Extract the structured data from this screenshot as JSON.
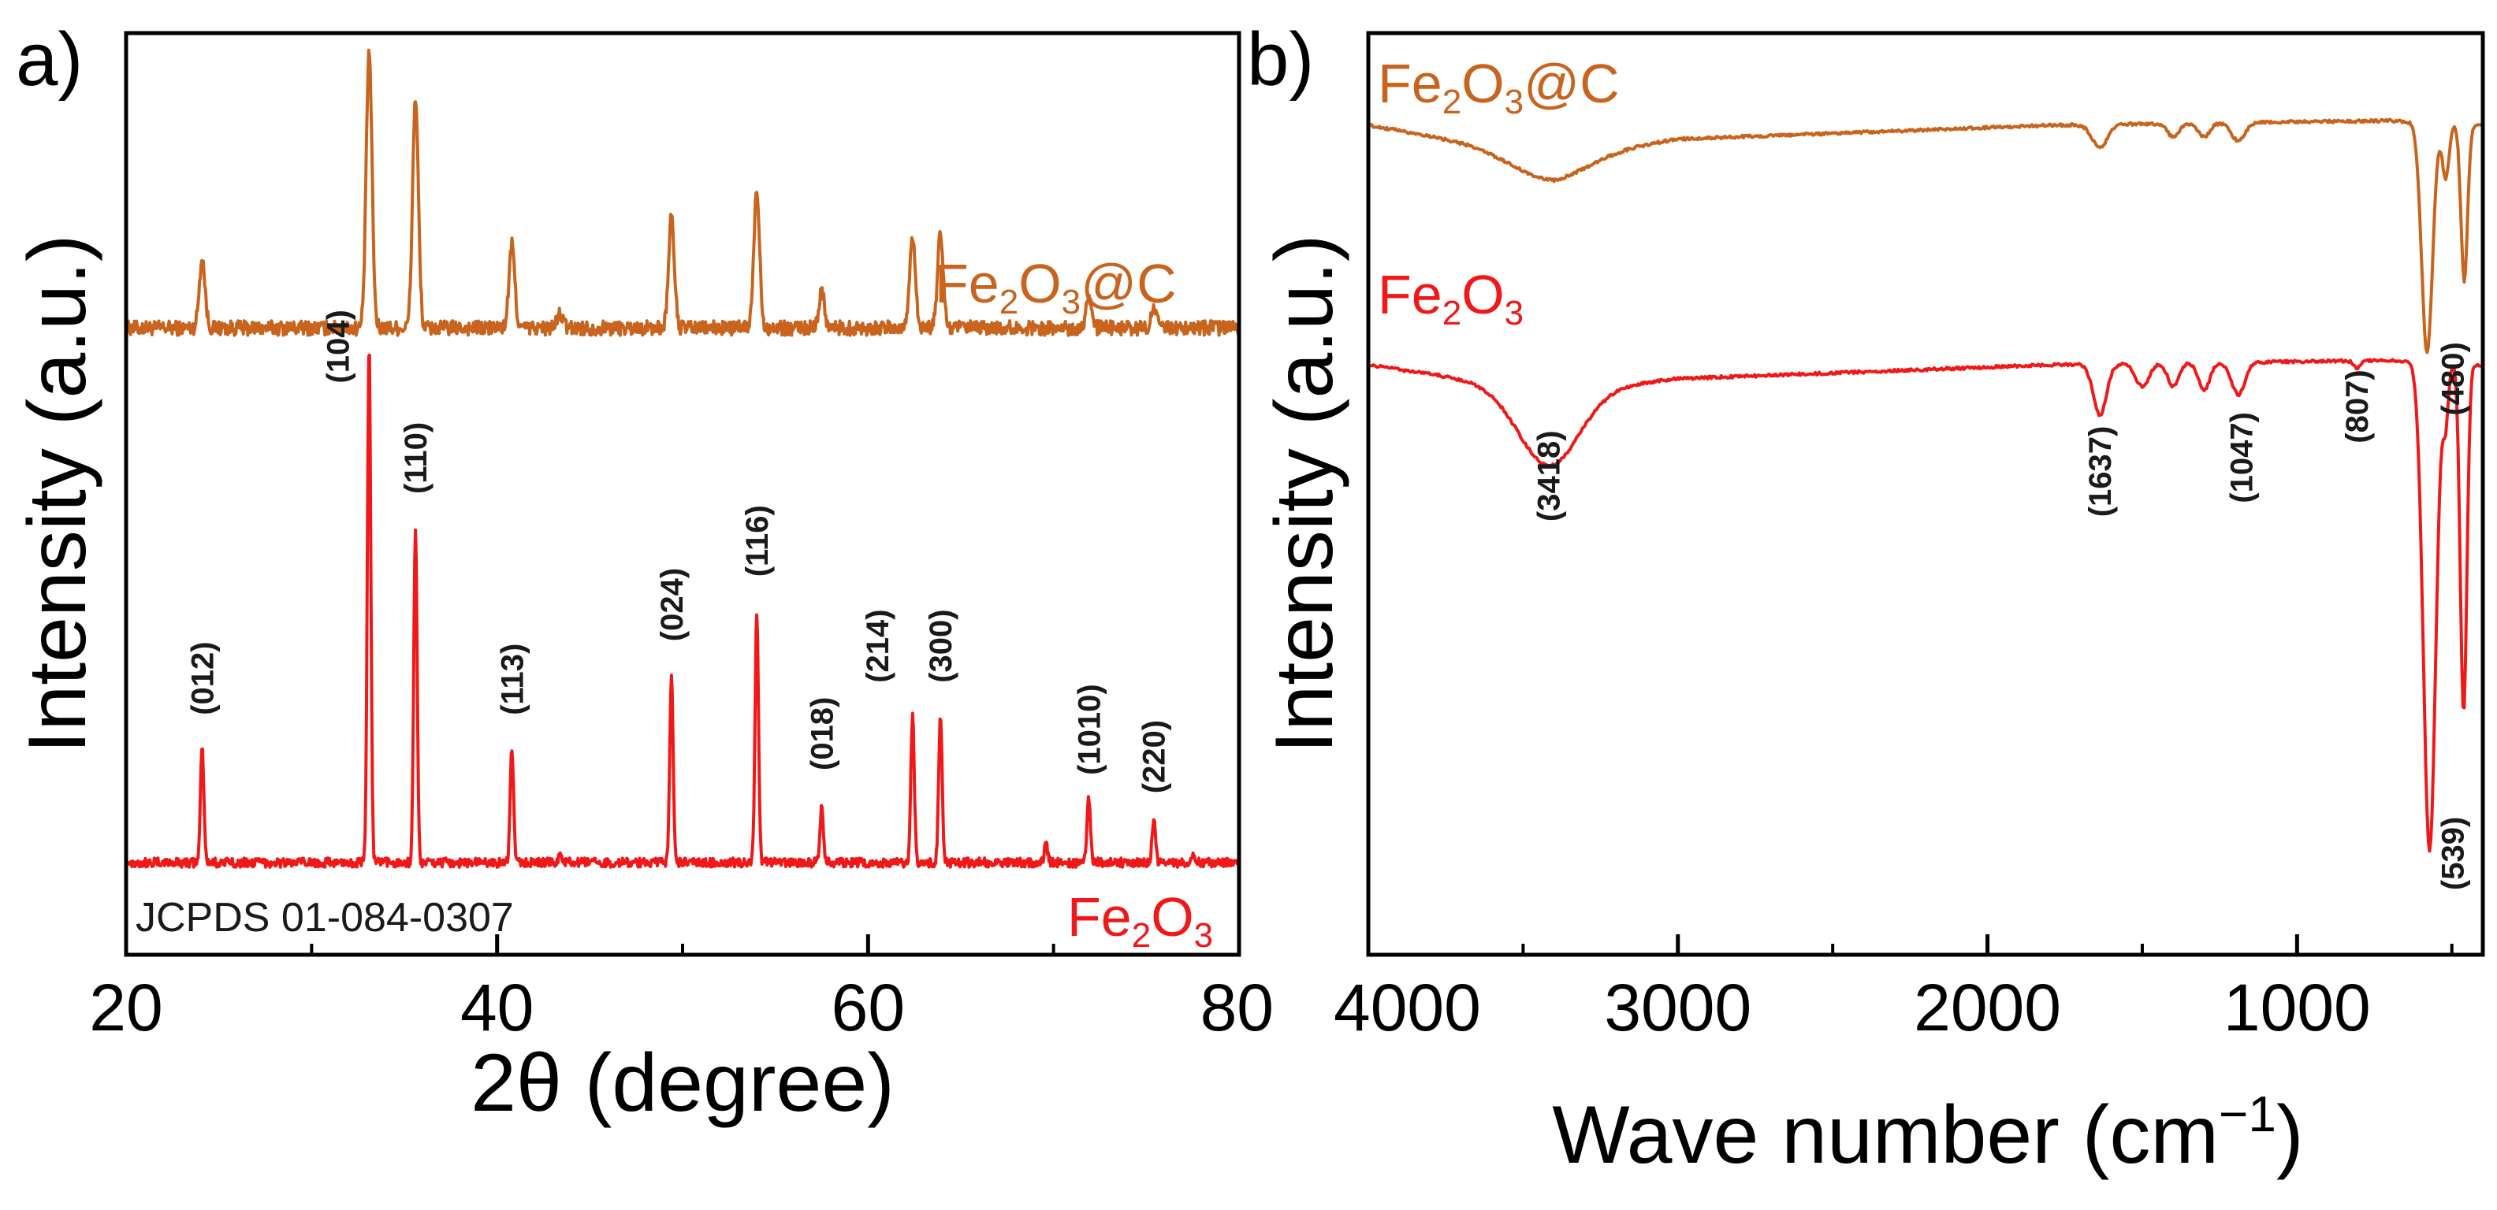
{
  "colors": {
    "xrd_composite": "#c8641e",
    "xrd_bare": "#f01818",
    "ftir_composite": "#c8641e",
    "ftir_bare": "#f01818",
    "axis": "#000000",
    "annotation": "#1a1a1a"
  },
  "chart_data": [
    {
      "type": "line",
      "panel_label": "a)",
      "title": "",
      "xlabel": "2θ (degree)",
      "ylabel": "Intensity (a.u.)",
      "xlim": [
        20,
        80
      ],
      "ylim": [
        0,
        10
      ],
      "x_ticks": [
        {
          "value": 20,
          "label": "20"
        },
        {
          "value": 40,
          "label": "40"
        },
        {
          "value": 60,
          "label": "60"
        },
        {
          "value": 80,
          "label": "80"
        }
      ],
      "reference_text": "JCPDS 01-084-0307",
      "series": [
        {
          "name": "Fe2O3@C",
          "label_main": "Fe",
          "label_sub": "2",
          "label_main2": "O",
          "label_sub2": "3",
          "label_tail": "@C",
          "baseline": 6.8,
          "noise": 0.08,
          "width": 0.22,
          "peaks": [
            [
              24.1,
              0.75
            ],
            [
              33.1,
              3.0
            ],
            [
              35.6,
              2.5
            ],
            [
              40.8,
              0.9
            ],
            [
              43.4,
              0.15
            ],
            [
              49.4,
              1.2
            ],
            [
              54.0,
              1.5
            ],
            [
              57.5,
              0.4
            ],
            [
              62.4,
              1.0
            ],
            [
              63.9,
              1.0
            ],
            [
              71.9,
              0.35
            ],
            [
              75.4,
              0.2
            ]
          ]
        },
        {
          "name": "Fe2O3",
          "label_main": "Fe",
          "label_sub": "2",
          "label_main2": "O",
          "label_sub2": "3",
          "label_tail": "",
          "baseline": 1.0,
          "noise": 0.05,
          "width": 0.13,
          "peaks": [
            [
              24.1,
              1.25
            ],
            [
              33.1,
              5.6
            ],
            [
              35.6,
              3.6
            ],
            [
              40.8,
              1.25
            ],
            [
              43.4,
              0.1
            ],
            [
              49.4,
              2.0
            ],
            [
              54.0,
              2.7
            ],
            [
              57.5,
              0.6
            ],
            [
              62.4,
              1.6
            ],
            [
              63.9,
              1.6
            ],
            [
              69.6,
              0.2
            ],
            [
              71.9,
              0.7
            ],
            [
              75.4,
              0.45
            ],
            [
              77.5,
              0.1
            ]
          ]
        }
      ],
      "annotations": [
        {
          "x": 24.1,
          "y": 2.6,
          "text": "(012)"
        },
        {
          "x": 31.4,
          "y": 6.2,
          "text": "(104)"
        },
        {
          "x": 35.6,
          "y": 5.0,
          "text": "(110)"
        },
        {
          "x": 40.8,
          "y": 2.6,
          "text": "(113)"
        },
        {
          "x": 49.4,
          "y": 3.4,
          "text": "(024)"
        },
        {
          "x": 54.0,
          "y": 4.1,
          "text": "(116)"
        },
        {
          "x": 57.5,
          "y": 2.0,
          "text": "(018)"
        },
        {
          "x": 60.5,
          "y": 2.95,
          "text": "(214)"
        },
        {
          "x": 63.9,
          "y": 2.95,
          "text": "(300)"
        },
        {
          "x": 71.9,
          "y": 1.95,
          "text": "(1010)"
        },
        {
          "x": 75.4,
          "y": 1.75,
          "text": "(220)"
        }
      ]
    },
    {
      "type": "line",
      "panel_label": "b)",
      "title": "",
      "xlabel_main": "Wave number (cm",
      "xlabel_sup": "−1",
      "xlabel_tail": ")",
      "ylabel": "Intensity (a.u.)",
      "xlim": [
        4000,
        400
      ],
      "ylim": [
        0,
        10
      ],
      "x_ticks": [
        {
          "value": 4000,
          "label": "4000"
        },
        {
          "value": 3000,
          "label": "3000"
        },
        {
          "value": 2000,
          "label": "2000"
        },
        {
          "value": 1000,
          "label": "1000"
        }
      ],
      "series": [
        {
          "name": "Fe2O3@C",
          "label_main": "Fe",
          "label_sub": "2",
          "label_main2": "O",
          "label_sub2": "3",
          "label_tail": "@C",
          "baseline": 9.0,
          "drift": [
            [
              4000,
              0.0
            ],
            [
              3400,
              -0.35
            ],
            [
              3000,
              -0.15
            ],
            [
              1800,
              0.0
            ],
            [
              700,
              0.05
            ],
            [
              400,
              0.0
            ]
          ],
          "bands": [
            [
              3418,
              0.25,
              180
            ],
            [
              1637,
              0.25,
              35
            ],
            [
              1400,
              0.15,
              25
            ],
            [
              1300,
              0.15,
              25
            ],
            [
              1190,
              0.2,
              30
            ],
            [
              580,
              2.5,
              25
            ],
            [
              520,
              0.6,
              15
            ],
            [
              460,
              1.7,
              15
            ]
          ]
        },
        {
          "name": "Fe2O3",
          "label_main": "Fe",
          "label_sub": "2",
          "label_main2": "O",
          "label_sub2": "3",
          "label_tail": "",
          "baseline": 6.4,
          "drift": [
            [
              4000,
              0.0
            ],
            [
              3400,
              -0.3
            ],
            [
              3000,
              -0.15
            ],
            [
              1800,
              0.0
            ],
            [
              700,
              0.05
            ],
            [
              400,
              0.0
            ]
          ],
          "bands": [
            [
              3418,
              0.8,
              140
            ],
            [
              1637,
              0.55,
              30
            ],
            [
              1500,
              0.25,
              30
            ],
            [
              1400,
              0.25,
              25
            ],
            [
              1300,
              0.3,
              25
            ],
            [
              1190,
              0.35,
              30
            ],
            [
              807,
              0.08,
              15
            ],
            [
              572,
              5.3,
              28
            ],
            [
              520,
              0.6,
              12
            ],
            [
              462,
              3.8,
              15
            ]
          ]
        }
      ],
      "annotations": [
        {
          "x": 3418,
          "y": 4.7,
          "text": "(3418)"
        },
        {
          "x": 1637,
          "y": 4.75,
          "text": "(1637)"
        },
        {
          "x": 1180,
          "y": 4.9,
          "text": "(1047)"
        },
        {
          "x": 807,
          "y": 5.55,
          "text": "(807)"
        },
        {
          "x": 498,
          "y": 5.85,
          "text": "(480)"
        },
        {
          "x": 498,
          "y": 0.7,
          "text": "(539)"
        }
      ]
    }
  ]
}
